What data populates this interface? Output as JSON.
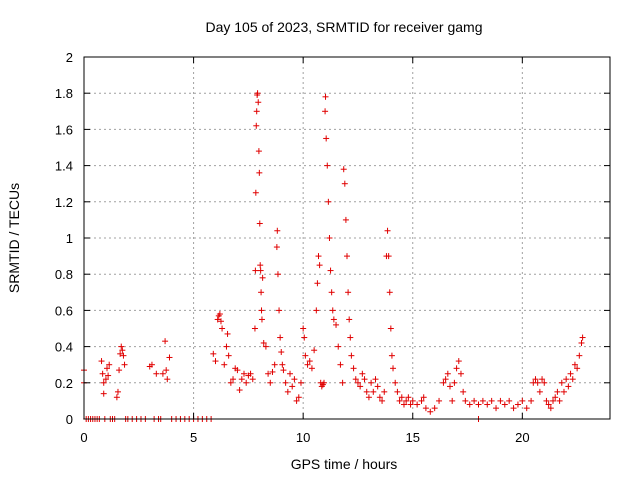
{
  "chart_data": {
    "type": "scatter",
    "title": "Day 105 of 2023, SRMTID for receiver gamg",
    "xlabel": "GPS time / hours",
    "ylabel": "SRMTID / TECUs",
    "xlim": [
      0,
      24
    ],
    "ylim": [
      0,
      2
    ],
    "xticks": [
      0,
      5,
      10,
      15,
      20
    ],
    "xtick_labels": [
      "0",
      "5",
      "10",
      "15",
      "20"
    ],
    "yticks": [
      0,
      0.2,
      0.4,
      0.6,
      0.8,
      1,
      1.2,
      1.4,
      1.6,
      1.8,
      2
    ],
    "ytick_labels": [
      "0",
      "0.2",
      "0.4",
      "0.6",
      "0.8",
      "1",
      "1.2",
      "1.4",
      "1.6",
      "1.8",
      "2"
    ],
    "grid": true,
    "marker": "+",
    "color": "#e00000",
    "series": [
      {
        "name": "SRMTID",
        "points": [
          [
            0.0,
            0.27
          ],
          [
            0.0,
            0.2
          ],
          [
            0.1,
            0
          ],
          [
            0.2,
            0
          ],
          [
            0.3,
            0
          ],
          [
            0.4,
            0
          ],
          [
            0.5,
            0
          ],
          [
            0.6,
            0
          ],
          [
            0.7,
            0
          ],
          [
            0.8,
            0.32
          ],
          [
            0.85,
            0.25
          ],
          [
            0.9,
            0.2
          ],
          [
            0.9,
            0.14
          ],
          [
            0.95,
            0
          ],
          [
            1.0,
            0.22
          ],
          [
            1.05,
            0.28
          ],
          [
            1.1,
            0.24
          ],
          [
            1.15,
            0.3
          ],
          [
            1.2,
            0
          ],
          [
            1.3,
            0
          ],
          [
            1.4,
            0
          ],
          [
            1.5,
            0.12
          ],
          [
            1.55,
            0.15
          ],
          [
            1.6,
            0.27
          ],
          [
            1.65,
            0.36
          ],
          [
            1.7,
            0.4
          ],
          [
            1.75,
            0.38
          ],
          [
            1.8,
            0.35
          ],
          [
            1.85,
            0.3
          ],
          [
            1.9,
            0
          ],
          [
            2.0,
            0
          ],
          [
            2.2,
            0
          ],
          [
            2.4,
            0
          ],
          [
            2.6,
            0
          ],
          [
            2.8,
            0
          ],
          [
            3.0,
            0.29
          ],
          [
            3.1,
            0.3
          ],
          [
            3.2,
            0
          ],
          [
            3.3,
            0.25
          ],
          [
            3.4,
            0
          ],
          [
            3.5,
            0
          ],
          [
            3.6,
            0.25
          ],
          [
            3.7,
            0.43
          ],
          [
            3.75,
            0.27
          ],
          [
            3.8,
            0.22
          ],
          [
            3.9,
            0.34
          ],
          [
            4.0,
            0
          ],
          [
            4.2,
            0
          ],
          [
            4.4,
            0
          ],
          [
            4.6,
            0
          ],
          [
            4.8,
            0
          ],
          [
            5.0,
            0
          ],
          [
            5.2,
            0
          ],
          [
            5.4,
            0
          ],
          [
            5.6,
            0
          ],
          [
            5.8,
            0
          ],
          [
            5.9,
            0.36
          ],
          [
            6.0,
            0.32
          ],
          [
            6.1,
            0.55
          ],
          [
            6.15,
            0.57
          ],
          [
            6.2,
            0.58
          ],
          [
            6.25,
            0.54
          ],
          [
            6.3,
            0.5
          ],
          [
            6.4,
            0.3
          ],
          [
            6.5,
            0.4
          ],
          [
            6.55,
            0.47
          ],
          [
            6.6,
            0.35
          ],
          [
            6.7,
            0.2
          ],
          [
            6.8,
            0.22
          ],
          [
            6.9,
            0.28
          ],
          [
            7.0,
            0.27
          ],
          [
            7.1,
            0.16
          ],
          [
            7.2,
            0.22
          ],
          [
            7.3,
            0.25
          ],
          [
            7.4,
            0.2
          ],
          [
            7.5,
            0.24
          ],
          [
            7.6,
            0.25
          ],
          [
            7.7,
            0.22
          ],
          [
            7.8,
            0.5
          ],
          [
            7.82,
            0.82
          ],
          [
            7.84,
            1.25
          ],
          [
            7.86,
            1.62
          ],
          [
            7.88,
            1.7
          ],
          [
            7.9,
            1.79
          ],
          [
            7.92,
            1.8
          ],
          [
            7.95,
            1.75
          ],
          [
            7.98,
            1.48
          ],
          [
            8.0,
            1.36
          ],
          [
            8.02,
            1.08
          ],
          [
            8.04,
            0.85
          ],
          [
            8.06,
            0.82
          ],
          [
            8.08,
            0.7
          ],
          [
            8.1,
            0.6
          ],
          [
            8.12,
            0.55
          ],
          [
            8.15,
            0.78
          ],
          [
            8.2,
            0.42
          ],
          [
            8.3,
            0.4
          ],
          [
            8.4,
            0.25
          ],
          [
            8.5,
            0.2
          ],
          [
            8.6,
            0.26
          ],
          [
            8.7,
            0.3
          ],
          [
            8.8,
            0.95
          ],
          [
            8.82,
            1.04
          ],
          [
            8.85,
            0.8
          ],
          [
            8.9,
            0.6
          ],
          [
            8.95,
            0.45
          ],
          [
            9.0,
            0.37
          ],
          [
            9.05,
            0.3
          ],
          [
            9.1,
            0.27
          ],
          [
            9.2,
            0.2
          ],
          [
            9.3,
            0.15
          ],
          [
            9.4,
            0.25
          ],
          [
            9.5,
            0.18
          ],
          [
            9.6,
            0.22
          ],
          [
            9.7,
            0.1
          ],
          [
            9.8,
            0.12
          ],
          [
            9.9,
            0.2
          ],
          [
            10.0,
            0.5
          ],
          [
            10.05,
            0.45
          ],
          [
            10.1,
            0.35
          ],
          [
            10.2,
            0.3
          ],
          [
            10.3,
            0.32
          ],
          [
            10.4,
            0.28
          ],
          [
            10.5,
            0.38
          ],
          [
            10.6,
            0.6
          ],
          [
            10.65,
            0.75
          ],
          [
            10.7,
            0.9
          ],
          [
            10.75,
            0.85
          ],
          [
            10.8,
            0.2
          ],
          [
            10.85,
            0.18
          ],
          [
            10.9,
            0.19
          ],
          [
            10.95,
            0.2
          ],
          [
            11.0,
            1.7
          ],
          [
            11.02,
            1.78
          ],
          [
            11.05,
            1.55
          ],
          [
            11.1,
            1.4
          ],
          [
            11.15,
            1.2
          ],
          [
            11.2,
            1.0
          ],
          [
            11.25,
            0.82
          ],
          [
            11.3,
            0.7
          ],
          [
            11.35,
            0.6
          ],
          [
            11.4,
            0.55
          ],
          [
            11.5,
            0.52
          ],
          [
            11.6,
            0.4
          ],
          [
            11.7,
            0.3
          ],
          [
            11.8,
            0.2
          ],
          [
            11.85,
            1.38
          ],
          [
            11.9,
            1.3
          ],
          [
            11.95,
            1.1
          ],
          [
            12.0,
            0.9
          ],
          [
            12.05,
            0.7
          ],
          [
            12.1,
            0.55
          ],
          [
            12.15,
            0.45
          ],
          [
            12.2,
            0.35
          ],
          [
            12.3,
            0.28
          ],
          [
            12.4,
            0.22
          ],
          [
            12.5,
            0.2
          ],
          [
            12.6,
            0.18
          ],
          [
            12.7,
            0.25
          ],
          [
            12.8,
            0.22
          ],
          [
            12.9,
            0.15
          ],
          [
            13.0,
            0.12
          ],
          [
            13.1,
            0.2
          ],
          [
            13.2,
            0.15
          ],
          [
            13.3,
            0.22
          ],
          [
            13.4,
            0.18
          ],
          [
            13.5,
            0.12
          ],
          [
            13.6,
            0.1
          ],
          [
            13.7,
            0.15
          ],
          [
            13.8,
            0.9
          ],
          [
            13.85,
            1.04
          ],
          [
            13.9,
            0.9
          ],
          [
            13.95,
            0.7
          ],
          [
            14.0,
            0.5
          ],
          [
            14.05,
            0.35
          ],
          [
            14.1,
            0.28
          ],
          [
            14.2,
            0.2
          ],
          [
            14.3,
            0.15
          ],
          [
            14.4,
            0.1
          ],
          [
            14.5,
            0.12
          ],
          [
            14.6,
            0.08
          ],
          [
            14.7,
            0.1
          ],
          [
            14.8,
            0.12
          ],
          [
            14.9,
            0.08
          ],
          [
            15.0,
            0.1
          ],
          [
            15.2,
            0.08
          ],
          [
            15.4,
            0.1
          ],
          [
            15.5,
            0.12
          ],
          [
            15.6,
            0.06
          ],
          [
            15.8,
            0.04
          ],
          [
            16.0,
            0.06
          ],
          [
            16.2,
            0.1
          ],
          [
            16.4,
            0.2
          ],
          [
            16.5,
            0.22
          ],
          [
            16.6,
            0.25
          ],
          [
            16.7,
            0.18
          ],
          [
            16.8,
            0.1
          ],
          [
            16.9,
            0.2
          ],
          [
            17.0,
            0.28
          ],
          [
            17.1,
            0.32
          ],
          [
            17.2,
            0.25
          ],
          [
            17.3,
            0.15
          ],
          [
            17.4,
            0.1
          ],
          [
            17.6,
            0.08
          ],
          [
            17.8,
            0.1
          ],
          [
            18.0,
            0.08
          ],
          [
            18.0,
            0
          ],
          [
            18.2,
            0.1
          ],
          [
            18.4,
            0.08
          ],
          [
            18.6,
            0.1
          ],
          [
            18.8,
            0.06
          ],
          [
            19.0,
            0.1
          ],
          [
            19.2,
            0.08
          ],
          [
            19.4,
            0.1
          ],
          [
            19.6,
            0.06
          ],
          [
            19.8,
            0.08
          ],
          [
            20.0,
            0.1
          ],
          [
            20.2,
            0.06
          ],
          [
            20.4,
            0.1
          ],
          [
            20.5,
            0.2
          ],
          [
            20.6,
            0.22
          ],
          [
            20.7,
            0.2
          ],
          [
            20.8,
            0.15
          ],
          [
            20.9,
            0.22
          ],
          [
            21.0,
            0.2
          ],
          [
            21.1,
            0.1
          ],
          [
            21.2,
            0.08
          ],
          [
            21.3,
            0.06
          ],
          [
            21.4,
            0.1
          ],
          [
            21.5,
            0.12
          ],
          [
            21.6,
            0.15
          ],
          [
            21.7,
            0.1
          ],
          [
            21.8,
            0.2
          ],
          [
            21.9,
            0.15
          ],
          [
            22.0,
            0.22
          ],
          [
            22.1,
            0.18
          ],
          [
            22.2,
            0.25
          ],
          [
            22.3,
            0.22
          ],
          [
            22.4,
            0.3
          ],
          [
            22.5,
            0.28
          ],
          [
            22.6,
            0.35
          ],
          [
            22.7,
            0.42
          ],
          [
            22.75,
            0.45
          ]
        ]
      }
    ]
  }
}
